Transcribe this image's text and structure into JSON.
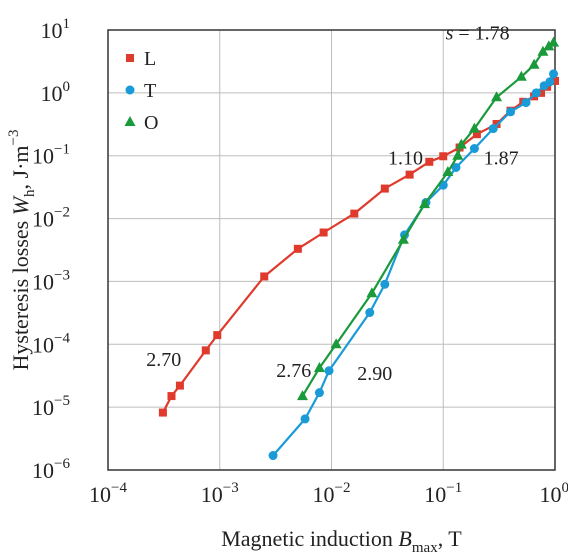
{
  "chart_data": {
    "type": "line",
    "xscale": "log",
    "yscale": "log",
    "xlim": [
      0.0001,
      1
    ],
    "ylim": [
      1e-06,
      10
    ],
    "grid": true,
    "legend_position": "top-left",
    "xlabel_main": "Magnetic induction ",
    "xlabel_var": "B",
    "xlabel_sub": "max",
    "xlabel_unit": ", T",
    "ylabel_main": "Hysteresis losses ",
    "ylabel_var": "W",
    "ylabel_sub": "h",
    "ylabel_unit": ", J·m",
    "ylabel_exp": "−3",
    "x_ticks": [
      {
        "base": "10",
        "exp": "−4",
        "value": 0.0001
      },
      {
        "base": "10",
        "exp": "−3",
        "value": 0.001
      },
      {
        "base": "10",
        "exp": "−2",
        "value": 0.01
      },
      {
        "base": "10",
        "exp": "−1",
        "value": 0.1
      },
      {
        "base": "10",
        "exp": "0",
        "value": 1
      }
    ],
    "y_ticks": [
      {
        "base": "10",
        "exp": "1",
        "value": 10
      },
      {
        "base": "10",
        "exp": "0",
        "value": 1
      },
      {
        "base": "10",
        "exp": "−1",
        "value": 0.1
      },
      {
        "base": "10",
        "exp": "−2",
        "value": 0.01
      },
      {
        "base": "10",
        "exp": "−3",
        "value": 0.001
      },
      {
        "base": "10",
        "exp": "−4",
        "value": 0.0001
      },
      {
        "base": "10",
        "exp": "−5",
        "value": 1e-05
      },
      {
        "base": "10",
        "exp": "−6",
        "value": 1e-06
      }
    ],
    "series": [
      {
        "name": "L",
        "color": "#e03a2c",
        "marker": "square",
        "points": [
          [
            0.00031,
            8.2e-06
          ],
          [
            0.00037,
            1.5e-05
          ],
          [
            0.00044,
            2.2e-05
          ],
          [
            0.00075,
            8e-05
          ],
          [
            0.00095,
            0.00014
          ],
          [
            0.0025,
            0.0012
          ],
          [
            0.005,
            0.0033
          ],
          [
            0.0085,
            0.006
          ],
          [
            0.016,
            0.012
          ],
          [
            0.03,
            0.03
          ],
          [
            0.05,
            0.05
          ],
          [
            0.075,
            0.08
          ],
          [
            0.1,
            0.098
          ],
          [
            0.14,
            0.135
          ],
          [
            0.2,
            0.22
          ],
          [
            0.3,
            0.32
          ],
          [
            0.4,
            0.52
          ],
          [
            0.52,
            0.72
          ],
          [
            0.65,
            0.88
          ],
          [
            0.75,
            1.0
          ],
          [
            0.85,
            1.25
          ],
          [
            1.0,
            1.55
          ]
        ]
      },
      {
        "name": "T",
        "color": "#1a9ad6",
        "marker": "circle",
        "points": [
          [
            0.003,
            1.7e-06
          ],
          [
            0.0058,
            6.5e-06
          ],
          [
            0.0078,
            1.7e-05
          ],
          [
            0.0095,
            3.8e-05
          ],
          [
            0.022,
            0.00032
          ],
          [
            0.03,
            0.0009
          ],
          [
            0.045,
            0.0055
          ],
          [
            0.07,
            0.018
          ],
          [
            0.1,
            0.034
          ],
          [
            0.13,
            0.065
          ],
          [
            0.19,
            0.13
          ],
          [
            0.28,
            0.27
          ],
          [
            0.4,
            0.5
          ],
          [
            0.55,
            0.7
          ],
          [
            0.68,
            1.0
          ],
          [
            0.8,
            1.3
          ],
          [
            0.9,
            1.5
          ],
          [
            0.97,
            2.0
          ]
        ]
      },
      {
        "name": "O",
        "color": "#1a9a3a",
        "marker": "triangle",
        "points": [
          [
            0.0055,
            1.5e-05
          ],
          [
            0.0078,
            4.2e-05
          ],
          [
            0.011,
            0.0001
          ],
          [
            0.023,
            0.00065
          ],
          [
            0.044,
            0.0046
          ],
          [
            0.068,
            0.017
          ],
          [
            0.11,
            0.055
          ],
          [
            0.135,
            0.1
          ],
          [
            0.145,
            0.15
          ],
          [
            0.19,
            0.27
          ],
          [
            0.3,
            0.85
          ],
          [
            0.5,
            1.8
          ],
          [
            0.65,
            2.8
          ],
          [
            0.78,
            4.5
          ],
          [
            0.88,
            5.5
          ],
          [
            0.97,
            6.3
          ]
        ]
      }
    ],
    "annotations": [
      {
        "text": "2.70",
        "x": 0.00022,
        "y": 4.5e-05
      },
      {
        "text": "2.76",
        "x": 0.0032,
        "y": 3e-05
      },
      {
        "text": "2.90",
        "x": 0.017,
        "y": 2.7e-05
      },
      {
        "text": "1.10",
        "x": 0.032,
        "y": 0.073
      },
      {
        "text": "1.87",
        "x": 0.23,
        "y": 0.073
      },
      {
        "text_var": "s",
        "text": " = 1.78",
        "x": 0.105,
        "y": 7.0
      }
    ]
  }
}
